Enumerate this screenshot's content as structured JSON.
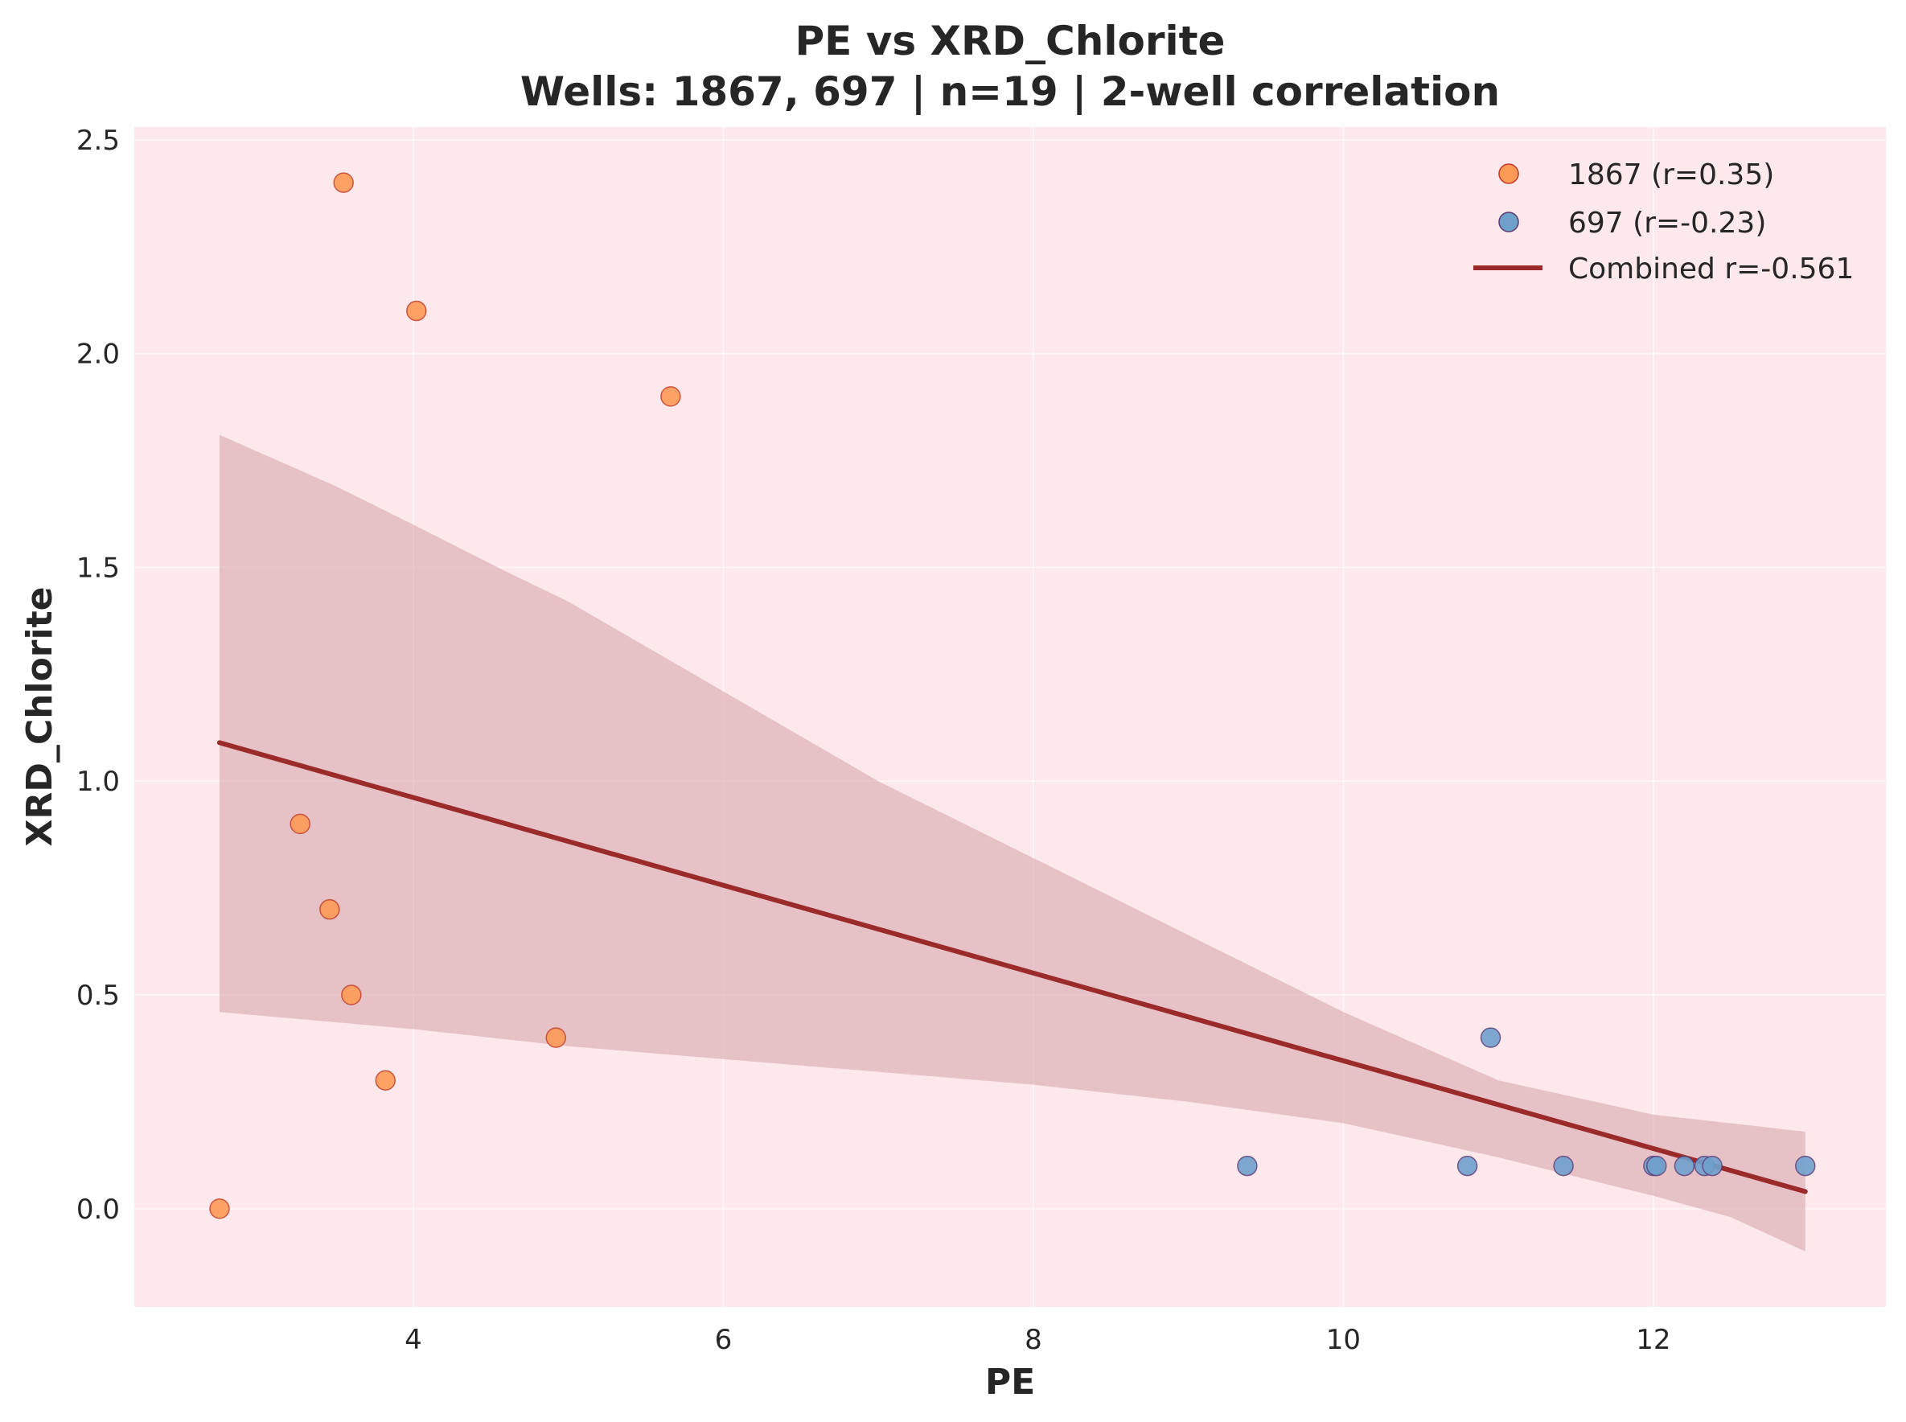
{
  "chart_data": {
    "type": "scatter",
    "title": "PE vs XRD_Chlorite",
    "subtitle": "Wells: 1867, 697 | n=19 | 2-well correlation",
    "xlabel": "PE",
    "ylabel": "XRD_Chlorite",
    "xlim": [
      2.2,
      13.5
    ],
    "ylim": [
      -0.23,
      2.53
    ],
    "xticks": [
      4,
      6,
      8,
      10,
      12
    ],
    "yticks": [
      0.0,
      0.5,
      1.0,
      1.5,
      2.0,
      2.5
    ],
    "xtick_labels": [
      "4",
      "6",
      "8",
      "10",
      "12"
    ],
    "ytick_labels": [
      "0.0",
      "0.5",
      "1.0",
      "1.5",
      "2.0",
      "2.5"
    ],
    "grid": true,
    "legend_position": "top-right",
    "series": [
      {
        "name": "1867 (r=0.35)",
        "color": "#fd9a55",
        "edge_color": "#c0392b",
        "points": [
          {
            "x": 2.75,
            "y": 0.0
          },
          {
            "x": 3.27,
            "y": 0.9
          },
          {
            "x": 3.46,
            "y": 0.7
          },
          {
            "x": 3.55,
            "y": 2.4
          },
          {
            "x": 3.6,
            "y": 0.5
          },
          {
            "x": 3.82,
            "y": 0.3
          },
          {
            "x": 4.02,
            "y": 2.1
          },
          {
            "x": 4.92,
            "y": 0.4
          },
          {
            "x": 5.66,
            "y": 1.9
          }
        ]
      },
      {
        "name": "697 (r=-0.23)",
        "color": "#6fa0cc",
        "edge_color": "#5b3b74",
        "points": [
          {
            "x": 9.38,
            "y": 0.1
          },
          {
            "x": 10.8,
            "y": 0.1
          },
          {
            "x": 10.95,
            "y": 0.4
          },
          {
            "x": 11.42,
            "y": 0.1
          },
          {
            "x": 12.0,
            "y": 0.1
          },
          {
            "x": 12.02,
            "y": 0.1
          },
          {
            "x": 12.2,
            "y": 0.1
          },
          {
            "x": 12.33,
            "y": 0.1
          },
          {
            "x": 12.38,
            "y": 0.1
          },
          {
            "x": 12.98,
            "y": 0.1
          }
        ]
      }
    ],
    "regression": {
      "name": "Combined r=-0.561",
      "color": "#9b2a2a",
      "x": [
        2.75,
        12.98
      ],
      "y": [
        1.09,
        0.04
      ],
      "band_color": "#d4a0a8",
      "band_upper": [
        {
          "x": 2.75,
          "y": 1.81
        },
        {
          "x": 3.5,
          "y": 1.69
        },
        {
          "x": 4.0,
          "y": 1.6
        },
        {
          "x": 4.6,
          "y": 1.49
        },
        {
          "x": 5.0,
          "y": 1.42
        },
        {
          "x": 6.0,
          "y": 1.21
        },
        {
          "x": 7.0,
          "y": 1.0
        },
        {
          "x": 8.0,
          "y": 0.82
        },
        {
          "x": 9.0,
          "y": 0.64
        },
        {
          "x": 10.0,
          "y": 0.46
        },
        {
          "x": 11.0,
          "y": 0.3
        },
        {
          "x": 12.0,
          "y": 0.22
        },
        {
          "x": 12.98,
          "y": 0.18
        }
      ],
      "band_lower": [
        {
          "x": 2.75,
          "y": 0.46
        },
        {
          "x": 4.0,
          "y": 0.42
        },
        {
          "x": 5.0,
          "y": 0.38
        },
        {
          "x": 6.0,
          "y": 0.35
        },
        {
          "x": 7.0,
          "y": 0.32
        },
        {
          "x": 8.0,
          "y": 0.29
        },
        {
          "x": 9.0,
          "y": 0.25
        },
        {
          "x": 10.0,
          "y": 0.2
        },
        {
          "x": 11.0,
          "y": 0.12
        },
        {
          "x": 12.0,
          "y": 0.03
        },
        {
          "x": 12.5,
          "y": -0.02
        },
        {
          "x": 12.98,
          "y": -0.1
        }
      ]
    },
    "plot_background": "#fde8eb"
  }
}
